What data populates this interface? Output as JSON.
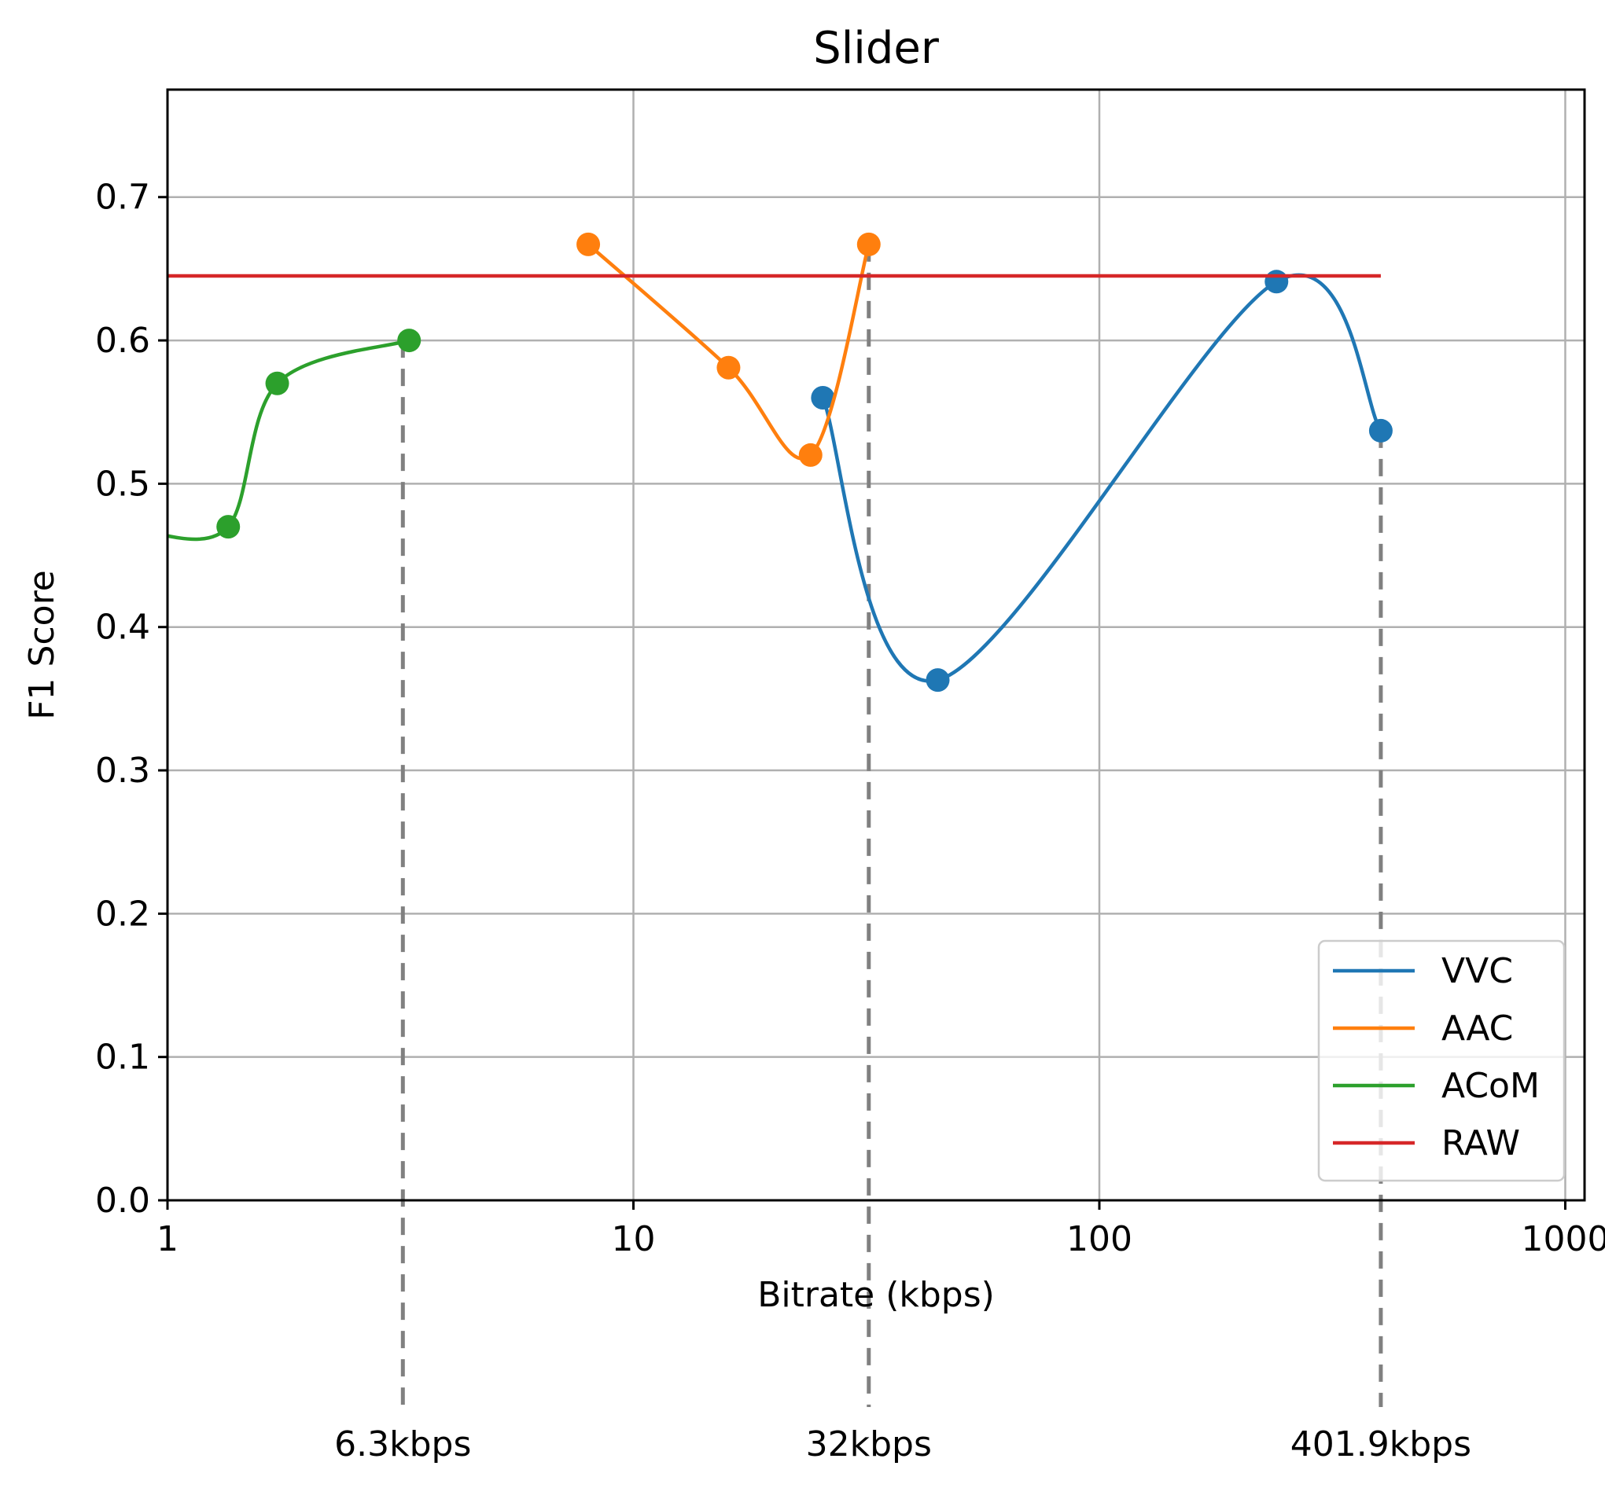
{
  "chart_data": {
    "type": "line",
    "title": "Slider",
    "xlabel": "Bitrate (kbps)",
    "ylabel": "F1 Score",
    "xscale": "log",
    "xlim": [
      1,
      1100
    ],
    "ylim": [
      0,
      0.775
    ],
    "xticks": [
      {
        "value": 1,
        "label": "1"
      },
      {
        "value": 10,
        "label": "10"
      },
      {
        "value": 100,
        "label": "100"
      },
      {
        "value": 1000,
        "label": "1000"
      }
    ],
    "yticks": [
      {
        "value": 0.0,
        "label": "0.0"
      },
      {
        "value": 0.1,
        "label": "0.1"
      },
      {
        "value": 0.2,
        "label": "0.2"
      },
      {
        "value": 0.3,
        "label": "0.3"
      },
      {
        "value": 0.4,
        "label": "0.4"
      },
      {
        "value": 0.5,
        "label": "0.5"
      },
      {
        "value": 0.6,
        "label": "0.6"
      },
      {
        "value": 0.7,
        "label": "0.7"
      }
    ],
    "grid": true,
    "legend_position": "bottom-right",
    "series": [
      {
        "name": "VVC",
        "color": "#1f77b4",
        "markers": true,
        "x": [
          25.5,
          45,
          240,
          401.9
        ],
        "y": [
          0.56,
          0.363,
          0.641,
          0.537
        ]
      },
      {
        "name": "AAC",
        "color": "#ff7f0e",
        "markers": true,
        "x": [
          8,
          16,
          24,
          32
        ],
        "y": [
          0.667,
          0.581,
          0.52,
          0.667
        ]
      },
      {
        "name": "ACoM",
        "color": "#2ca02c",
        "markers": true,
        "x": [
          0.9,
          1.35,
          1.72,
          3.3
        ],
        "y": [
          0.466,
          0.47,
          0.57,
          0.6
        ]
      },
      {
        "name": "RAW",
        "color": "#d62728",
        "markers": false,
        "x": [
          1,
          401.9
        ],
        "y": [
          0.645,
          0.645
        ]
      }
    ],
    "annotations": [
      {
        "x": 3.2,
        "label": "6.3kbps",
        "from_y": 0.6
      },
      {
        "x": 32,
        "label": "32kbps",
        "from_y": 0.667
      },
      {
        "x": 401.9,
        "label": "401.9kbps",
        "from_y": 0.537
      }
    ],
    "annotation_color": "#808080"
  }
}
